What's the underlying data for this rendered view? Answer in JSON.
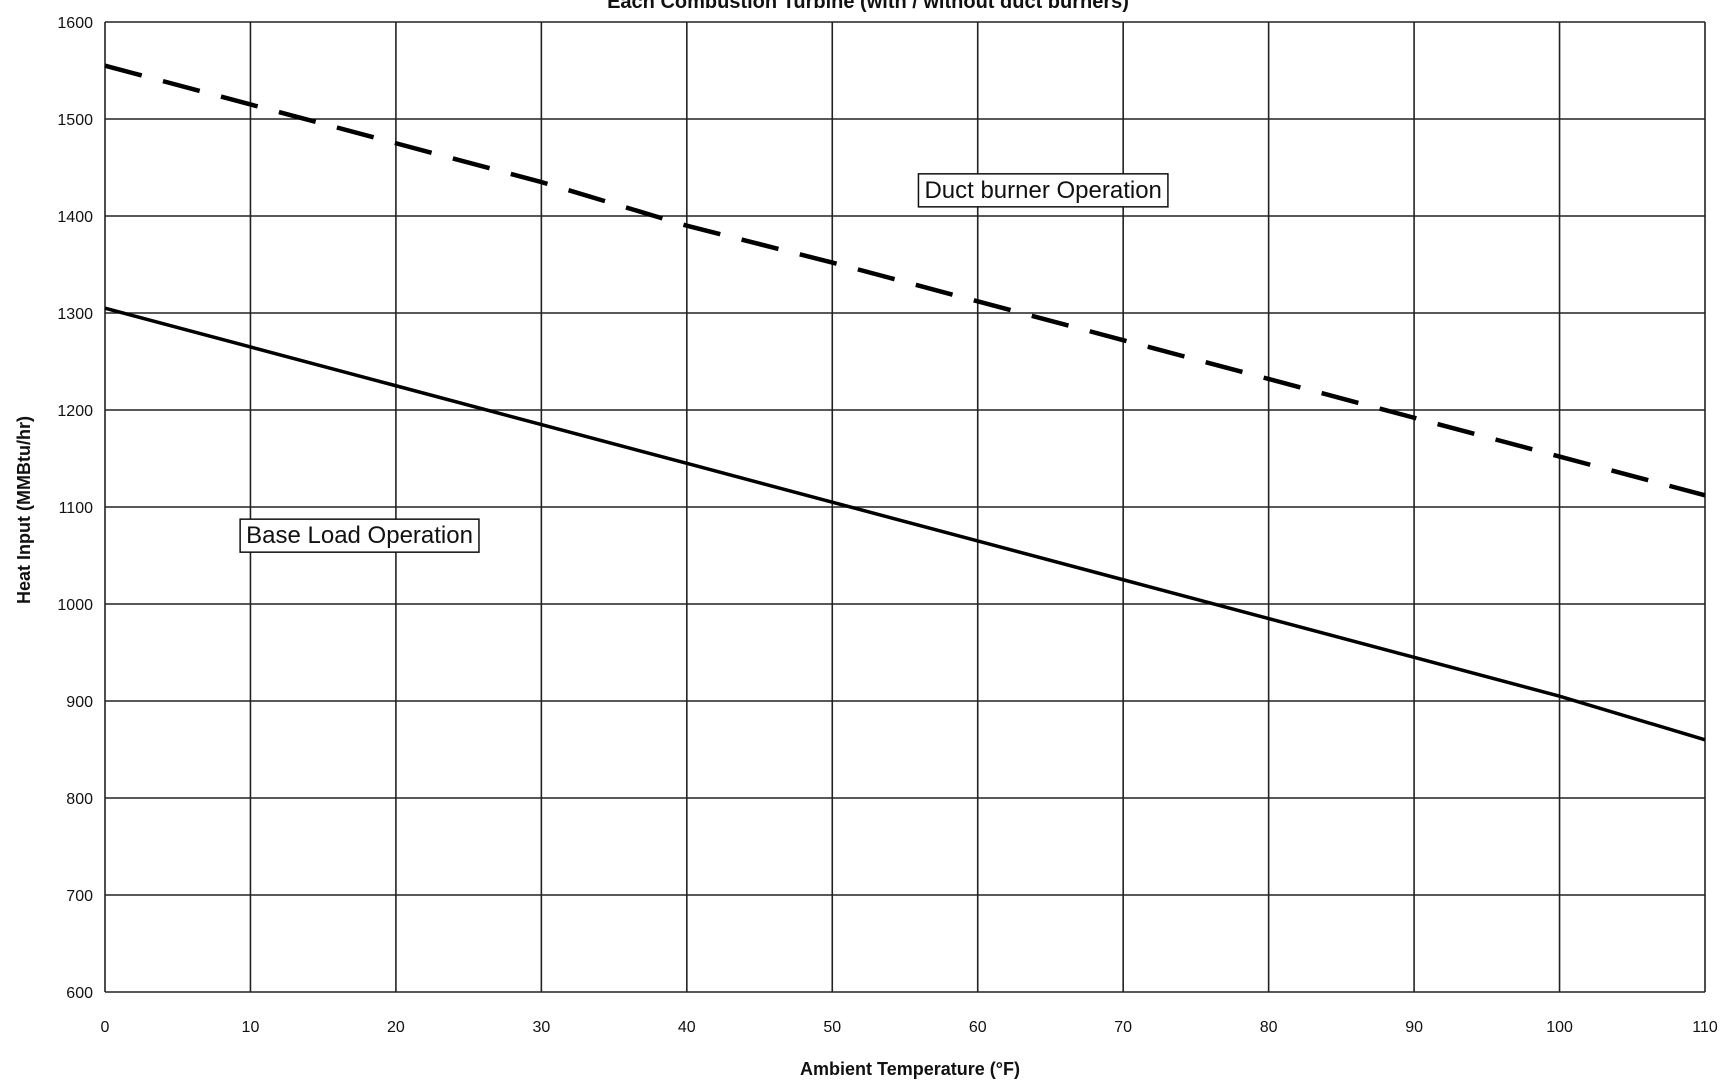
{
  "chart_data": {
    "type": "line",
    "title": "Each Combustion Turbine (with / without duct burners)",
    "xlabel": "Ambient Temperature (°F)",
    "ylabel": "Heat Input (MMBtu/hr)",
    "xlim": [
      0,
      110
    ],
    "ylim": [
      600,
      1600
    ],
    "x_ticks": [
      0,
      10,
      20,
      30,
      40,
      50,
      60,
      70,
      80,
      90,
      100,
      110
    ],
    "x_tick_labels": [
      "0",
      "10",
      "20",
      "30",
      "40",
      "50",
      "60",
      "70",
      "80",
      "90",
      "100",
      "110"
    ],
    "y_ticks": [
      600,
      700,
      800,
      900,
      1000,
      1100,
      1200,
      1300,
      1400,
      1500,
      1600
    ],
    "y_tick_labels": [
      "600",
      "700",
      "800",
      "900",
      "1000",
      "1100",
      "1200",
      "1300",
      "1400",
      "1500",
      "1600"
    ],
    "grid": true,
    "series": [
      {
        "label": "duct-burner",
        "style": "dashed",
        "color": "#000000",
        "x": [
          0,
          10,
          20,
          30,
          40,
          50,
          60,
          70,
          80,
          90,
          100,
          110
        ],
        "y": [
          1555,
          1515,
          1475,
          1435,
          1390,
          1352,
          1312,
          1272,
          1232,
          1192,
          1152,
          1112
        ]
      },
      {
        "label": "base-load",
        "style": "solid",
        "color": "#000000",
        "x": [
          0,
          10,
          20,
          30,
          40,
          50,
          60,
          70,
          80,
          90,
          100,
          110
        ],
        "y": [
          1305,
          1265,
          1225,
          1185,
          1145,
          1105,
          1065,
          1025,
          985,
          945,
          905,
          860
        ]
      }
    ],
    "annotations": [
      {
        "text": "Duct burner Operation",
        "x": 64.5,
        "y": 1428
      },
      {
        "text": "Base Load Operation",
        "x": 17.5,
        "y": 1072
      }
    ]
  }
}
